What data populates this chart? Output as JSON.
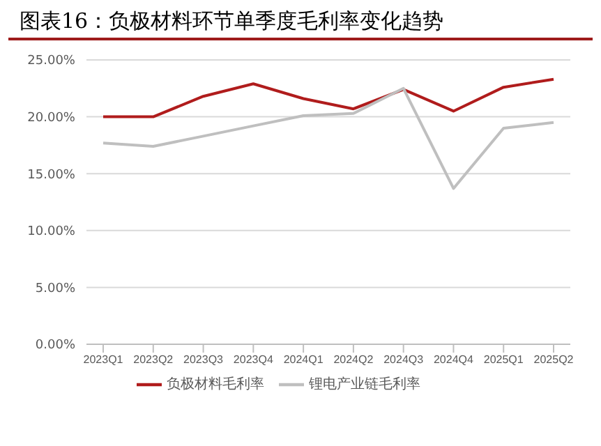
{
  "chart_data": {
    "type": "line",
    "title": "图表16：负极材料环节单季度毛利率变化趋势",
    "categories": [
      "2023Q1",
      "2023Q2",
      "2023Q3",
      "2023Q4",
      "2024Q1",
      "2024Q2",
      "2024Q3",
      "2024Q4",
      "2025Q1",
      "2025Q2"
    ],
    "series": [
      {
        "name": "负极材料毛利率",
        "color": "#b01c1c",
        "values": [
          20.0,
          20.0,
          21.8,
          22.9,
          21.6,
          20.7,
          22.4,
          20.5,
          22.6,
          23.3
        ]
      },
      {
        "name": "锂电产业链毛利率",
        "color": "#bfbfbf",
        "values": [
          17.7,
          17.4,
          18.3,
          19.2,
          20.1,
          20.3,
          22.5,
          13.7,
          19.0,
          19.5
        ]
      }
    ],
    "ylim": [
      0,
      25
    ],
    "yticks": [
      {
        "value": 0,
        "label": "0.00%"
      },
      {
        "value": 5,
        "label": "5.00%"
      },
      {
        "value": 10,
        "label": "10.00%"
      },
      {
        "value": 15,
        "label": "15.00%"
      },
      {
        "value": 20,
        "label": "20.00%"
      },
      {
        "value": 25,
        "label": "25.00%"
      }
    ],
    "grid": "y",
    "legend": "bottom",
    "marker": "none",
    "line_style": "solid"
  }
}
